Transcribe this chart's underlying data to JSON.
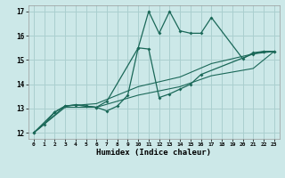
{
  "xlabel": "Humidex (Indice chaleur)",
  "background_color": "#cce8e8",
  "grid_color": "#aacfcf",
  "line_color": "#1a6858",
  "xlim": [
    -0.5,
    23.5
  ],
  "ylim": [
    11.75,
    17.25
  ],
  "xticks": [
    0,
    1,
    2,
    3,
    4,
    5,
    6,
    7,
    8,
    9,
    10,
    11,
    12,
    13,
    14,
    15,
    16,
    17,
    18,
    19,
    20,
    21,
    22,
    23
  ],
  "yticks": [
    12,
    13,
    14,
    15,
    16,
    17
  ],
  "line1_x": [
    0,
    1,
    2,
    3,
    4,
    5,
    6,
    7,
    8,
    9,
    10,
    11,
    12,
    13,
    14,
    15,
    16,
    17,
    20,
    21,
    22,
    23
  ],
  "line1_y": [
    12.0,
    12.35,
    12.85,
    13.1,
    13.15,
    13.1,
    13.05,
    12.9,
    13.1,
    13.55,
    15.5,
    17.0,
    16.1,
    17.0,
    16.2,
    16.1,
    16.1,
    16.75,
    15.05,
    15.3,
    15.35,
    15.35
  ],
  "line2_x": [
    0,
    2,
    3,
    4,
    5,
    6,
    7,
    10,
    11,
    12,
    13,
    14,
    15,
    16,
    21,
    22,
    23
  ],
  "line2_y": [
    12.0,
    12.85,
    13.1,
    13.15,
    13.1,
    13.05,
    13.3,
    15.5,
    15.45,
    13.45,
    13.6,
    13.8,
    14.0,
    14.4,
    15.25,
    15.35,
    15.35
  ],
  "line3_x": [
    0,
    3,
    6,
    10,
    14,
    17,
    21,
    23
  ],
  "line3_y": [
    12.0,
    13.1,
    13.2,
    13.9,
    14.3,
    14.85,
    15.25,
    15.35
  ],
  "line4_x": [
    0,
    3,
    6,
    10,
    14,
    17,
    21,
    23
  ],
  "line4_y": [
    12.0,
    13.05,
    13.05,
    13.55,
    13.9,
    14.35,
    14.65,
    15.35
  ]
}
